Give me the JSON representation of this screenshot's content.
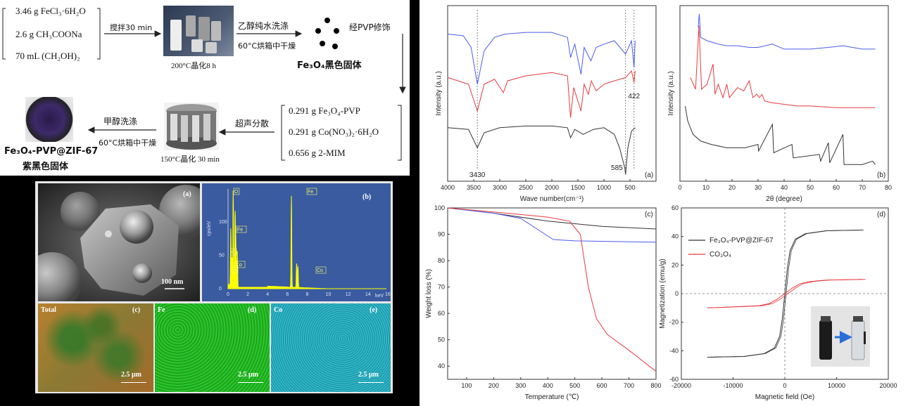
{
  "synthesis": {
    "reagents_1": [
      "3.46 g FeCl₃·6H₂O",
      "2.6 g CH₃COONa",
      "70 mL (CH₂OH)₂"
    ],
    "step_stir": "搅拌30 min",
    "step_autoclave": "200°C晶化8 h",
    "step_wash": "乙醇纯水洗涤",
    "step_dry1": "60°C烘箱中干燥",
    "product_fe3o4": "Fe₃O₄黑色固体",
    "step_pvp": "经PVP修饰",
    "reagents_2": [
      "0.291 g Fe₃O₄-PVP",
      "0.291 g Co(NO₃)₂·6H₂O",
      "0.656 g 2-MIM"
    ],
    "step_ultrasonic": "超声分散",
    "step_crystal2": "150°C晶化 30 min",
    "step_methanol": "甲醇洗涤",
    "step_dry2": "60°C烘箱中干燥",
    "product_final_1": "Fe₃O₄-PVP@ZIF-67",
    "product_final_2": "紫黑色固体"
  },
  "microscopy": {
    "sem_label": "(a)",
    "sem_scale": "100 nm",
    "eds_label": "(b)",
    "eds_y_axis": "cps/eV",
    "eds_x_unit": "keV",
    "eds_ticks_x": [
      "0",
      "2",
      "4",
      "6",
      "8",
      "10",
      "12",
      "14",
      "16"
    ],
    "eds_ticks_y": [
      "0",
      "50",
      "100"
    ],
    "eds_peaks": [
      "O",
      "Fe",
      "C",
      "Co",
      "N",
      "Fe",
      "Co"
    ],
    "map_total": "Total",
    "map_total_tag": "(c)",
    "map_fe": "Fe",
    "map_fe_tag": "(d)",
    "map_co": "Co",
    "map_co_tag": "(e)",
    "map_scale": "2.5 μm"
  },
  "colors": {
    "blue": "#4b5cf0",
    "red": "#e8393d",
    "black": "#333333",
    "eds_yellow": "#ffff00",
    "eds_bg": "#3a5ba0"
  },
  "chart_data": [
    {
      "type": "line",
      "panel": "(a)",
      "xlabel": "Wave number(cm⁻¹)",
      "ylabel": "Intensity (a.u.)",
      "xlim": [
        4000,
        0
      ],
      "x_ticks": [
        4000,
        3500,
        3000,
        2500,
        2000,
        1500,
        1000,
        500
      ],
      "annotations": [
        "3430",
        "585",
        "422"
      ],
      "series": [
        {
          "color": "blue",
          "points": [
            [
              4000,
              88
            ],
            [
              3700,
              87
            ],
            [
              3550,
              80
            ],
            [
              3430,
              58
            ],
            [
              3300,
              78
            ],
            [
              3100,
              86
            ],
            [
              2900,
              88
            ],
            [
              2500,
              89
            ],
            [
              2000,
              89
            ],
            [
              1700,
              86
            ],
            [
              1640,
              74
            ],
            [
              1560,
              82
            ],
            [
              1440,
              64
            ],
            [
              1380,
              80
            ],
            [
              1250,
              72
            ],
            [
              1150,
              80
            ],
            [
              1000,
              82
            ],
            [
              800,
              84
            ],
            [
              585,
              76
            ],
            [
              470,
              84
            ],
            [
              422,
              68
            ],
            [
              400,
              84
            ]
          ]
        },
        {
          "color": "red",
          "points": [
            [
              4000,
              62
            ],
            [
              3600,
              58
            ],
            [
              3430,
              42
            ],
            [
              3300,
              58
            ],
            [
              3100,
              61
            ],
            [
              2930,
              53
            ],
            [
              2850,
              60
            ],
            [
              2500,
              63
            ],
            [
              2000,
              65
            ],
            [
              1700,
              63
            ],
            [
              1640,
              38
            ],
            [
              1580,
              56
            ],
            [
              1440,
              42
            ],
            [
              1380,
              58
            ],
            [
              1300,
              52
            ],
            [
              1240,
              60
            ],
            [
              1150,
              54
            ],
            [
              1000,
              58
            ],
            [
              800,
              60
            ],
            [
              585,
              62
            ],
            [
              470,
              66
            ],
            [
              422,
              59
            ],
            [
              400,
              66
            ]
          ]
        },
        {
          "color": "black",
          "points": [
            [
              4000,
              32
            ],
            [
              3600,
              31
            ],
            [
              3430,
              20
            ],
            [
              3300,
              29
            ],
            [
              3000,
              32
            ],
            [
              2500,
              33
            ],
            [
              2000,
              33
            ],
            [
              1700,
              32
            ],
            [
              1640,
              26
            ],
            [
              1560,
              31
            ],
            [
              1400,
              28
            ],
            [
              1200,
              31
            ],
            [
              1000,
              32
            ],
            [
              800,
              28
            ],
            [
              700,
              20
            ],
            [
              600,
              8
            ],
            [
              585,
              4
            ],
            [
              540,
              20
            ],
            [
              470,
              30
            ],
            [
              400,
              32
            ]
          ]
        }
      ]
    },
    {
      "type": "line",
      "panel": "(b)",
      "xlabel": "2θ (degree)",
      "ylabel": "Intensity (a.u.)",
      "xlim": [
        0,
        80
      ],
      "x_ticks": [
        0,
        10,
        20,
        30,
        40,
        50,
        60,
        70,
        80
      ],
      "series": [
        {
          "color": "blue",
          "points": [
            [
              7,
              92
            ],
            [
              7.4,
              100
            ],
            [
              8,
              86
            ],
            [
              10.4,
              84
            ],
            [
              12.7,
              83
            ],
            [
              14.7,
              82
            ],
            [
              18,
              81
            ],
            [
              22,
              81
            ],
            [
              26.7,
              80
            ],
            [
              30,
              80
            ],
            [
              35.5,
              82
            ],
            [
              40,
              79
            ],
            [
              50,
              79
            ],
            [
              57,
              80
            ],
            [
              62.6,
              81
            ],
            [
              70,
              79
            ],
            [
              75,
              79
            ]
          ]
        },
        {
          "color": "red",
          "points": [
            [
              4,
              62
            ],
            [
              6,
              55
            ],
            [
              7.3,
              93
            ],
            [
              8.3,
              55
            ],
            [
              10.4,
              58
            ],
            [
              12.7,
              70
            ],
            [
              13.5,
              52
            ],
            [
              14.7,
              58
            ],
            [
              16.5,
              50
            ],
            [
              18,
              58
            ],
            [
              19,
              50
            ],
            [
              22.1,
              56
            ],
            [
              24.5,
              54
            ],
            [
              26.6,
              60
            ],
            [
              28,
              50
            ],
            [
              29.5,
              52
            ],
            [
              30.5,
              50
            ],
            [
              31.5,
              52
            ],
            [
              32.5,
              48
            ],
            [
              35,
              47
            ],
            [
              40,
              46
            ],
            [
              45,
              45
            ],
            [
              50,
              45
            ],
            [
              60,
              44
            ],
            [
              70,
              44
            ],
            [
              75,
              44
            ]
          ]
        },
        {
          "color": "black",
          "points": [
            [
              2,
              45
            ],
            [
              3,
              36
            ],
            [
              5,
              28
            ],
            [
              8,
              24
            ],
            [
              12,
              22
            ],
            [
              18,
              20
            ],
            [
              25,
              20
            ],
            [
              30,
              22
            ],
            [
              30.2,
              18
            ],
            [
              35.5,
              34
            ],
            [
              36,
              17
            ],
            [
              43,
              22
            ],
            [
              43.5,
              14
            ],
            [
              53.5,
              16
            ],
            [
              54,
              12
            ],
            [
              57,
              23
            ],
            [
              57.5,
              11
            ],
            [
              62.6,
              28
            ],
            [
              63,
              10
            ],
            [
              70,
              10
            ],
            [
              74,
              12
            ],
            [
              75,
              10
            ]
          ]
        }
      ]
    },
    {
      "type": "line",
      "panel": "(c)",
      "xlabel": "Temperature (℃)",
      "ylabel": "Weight loss (%)",
      "xlim": [
        30,
        800
      ],
      "ylim": [
        35,
        100
      ],
      "x_ticks": [
        100,
        200,
        300,
        400,
        500,
        600,
        700,
        800
      ],
      "y_ticks": [
        40,
        50,
        60,
        70,
        80,
        90,
        100
      ],
      "series": [
        {
          "color": "black",
          "points": [
            [
              30,
              100
            ],
            [
              200,
              98
            ],
            [
              400,
              95
            ],
            [
              600,
              93
            ],
            [
              800,
              92
            ]
          ]
        },
        {
          "color": "blue",
          "points": [
            [
              30,
              100
            ],
            [
              200,
              98
            ],
            [
              300,
              96
            ],
            [
              360,
              92
            ],
            [
              420,
              88
            ],
            [
              500,
              87.5
            ],
            [
              800,
              87
            ]
          ]
        },
        {
          "color": "red",
          "points": [
            [
              30,
              100
            ],
            [
              250,
              98
            ],
            [
              400,
              96.5
            ],
            [
              480,
              95
            ],
            [
              520,
              90
            ],
            [
              550,
              70
            ],
            [
              580,
              58
            ],
            [
              620,
              52
            ],
            [
              700,
              46
            ],
            [
              800,
              38
            ]
          ]
        }
      ]
    },
    {
      "type": "line",
      "panel": "(d)",
      "xlabel": "Magnetic field (Oe)",
      "ylabel": "Magnetization (emu/g)",
      "xlim": [
        -20000,
        20000
      ],
      "ylim": [
        -60,
        60
      ],
      "x_ticks": [
        -20000,
        -10000,
        0,
        10000,
        20000
      ],
      "y_ticks": [
        -60,
        -40,
        -20,
        0,
        20,
        40,
        60
      ],
      "series": [
        {
          "name": "Fe₃O₄-PVP@ZIF-67",
          "color": "black",
          "points": [
            [
              -15000,
              -44.5
            ],
            [
              -8000,
              -44
            ],
            [
              -4000,
              -42
            ],
            [
              -2000,
              -38
            ],
            [
              -1000,
              -30
            ],
            [
              -500,
              -18
            ],
            [
              0,
              0
            ],
            [
              500,
              18
            ],
            [
              1000,
              30
            ],
            [
              2000,
              38
            ],
            [
              4000,
              42
            ],
            [
              8000,
              44
            ],
            [
              15000,
              44.5
            ]
          ]
        },
        {
          "name": "CO₃O₄",
          "color": "red",
          "points": [
            [
              -15000,
              -10
            ],
            [
              -8000,
              -9
            ],
            [
              -5000,
              -8.5
            ],
            [
              -3000,
              -7
            ],
            [
              -1500,
              -4
            ],
            [
              0,
              0
            ],
            [
              1500,
              4
            ],
            [
              3000,
              7
            ],
            [
              5000,
              8.5
            ],
            [
              8000,
              9.5
            ],
            [
              15000,
              10
            ]
          ]
        }
      ]
    }
  ]
}
